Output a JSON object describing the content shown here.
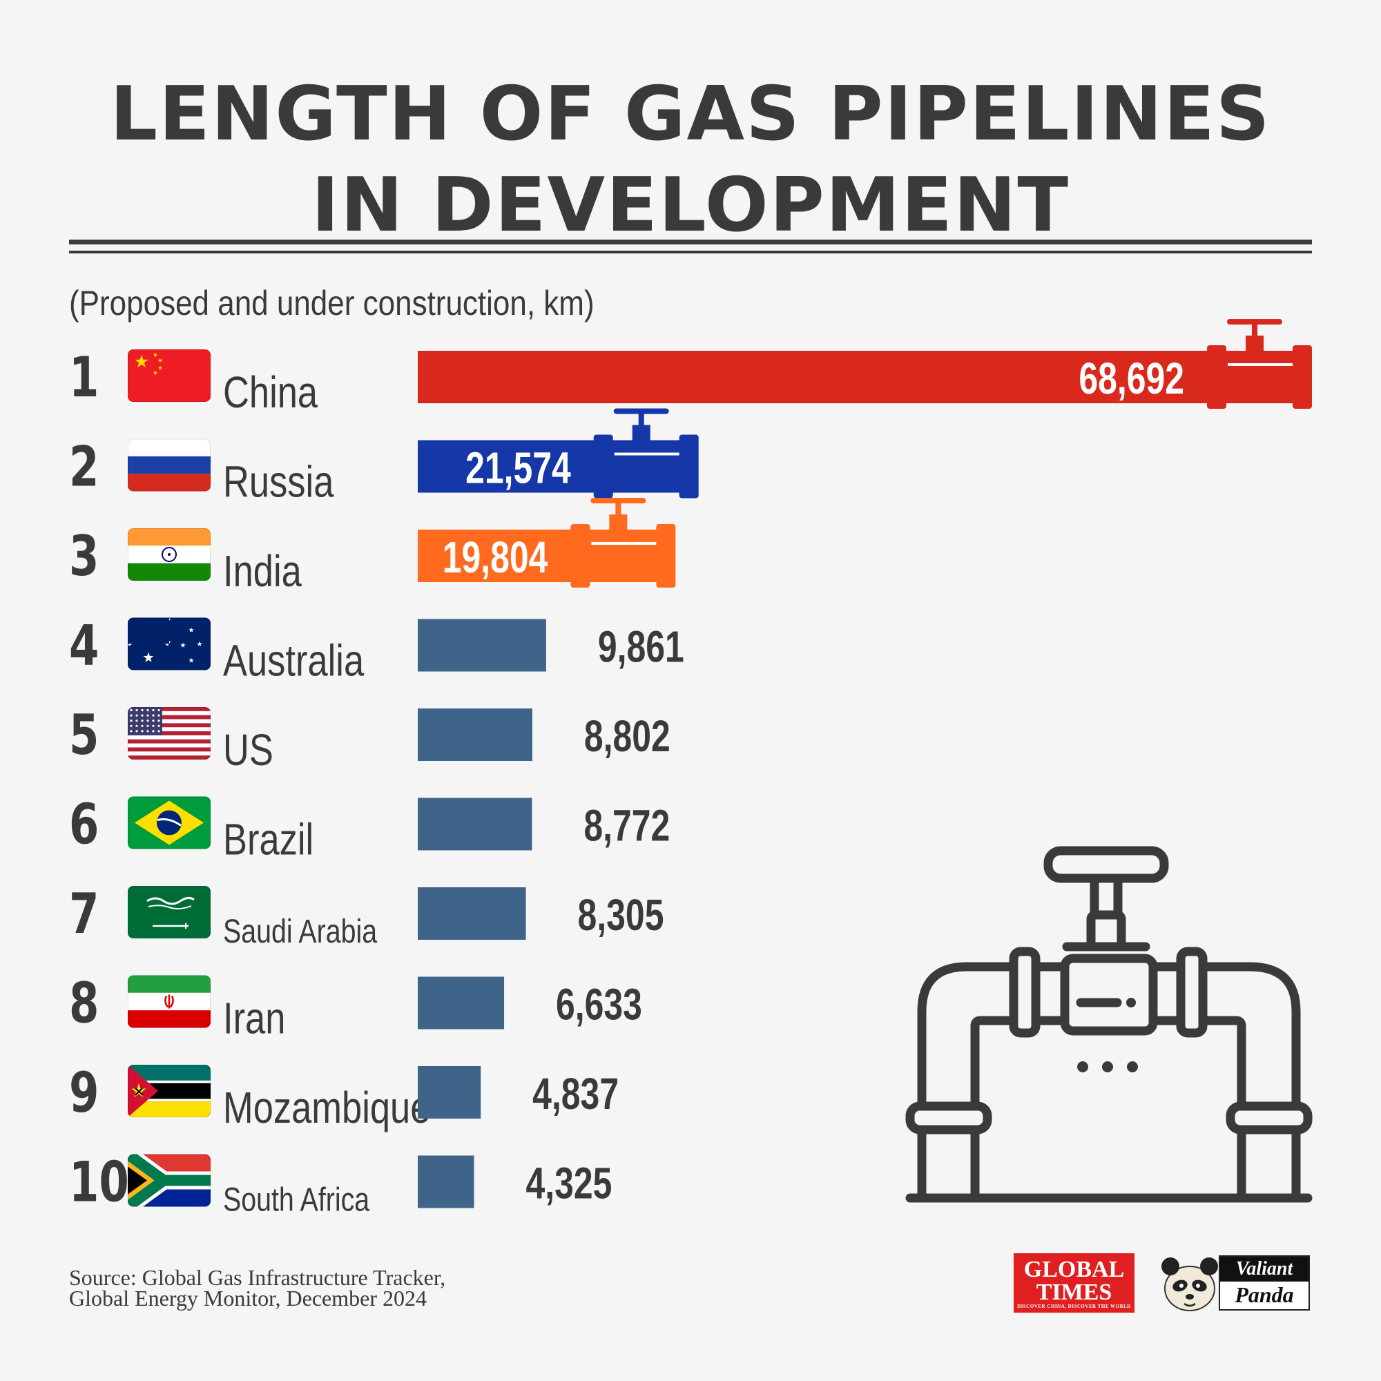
{
  "title": {
    "line1": "LENGTH OF GAS PIPELINES",
    "line2": "IN DEVELOPMENT"
  },
  "subtitle": "(Proposed and under construction, km)",
  "chart_data": {
    "type": "bar",
    "orientation": "horizontal",
    "title": "LENGTH OF GAS PIPELINES IN DEVELOPMENT",
    "subtitle": "(Proposed and under construction, km)",
    "categories": [
      "China",
      "Russia",
      "India",
      "Australia",
      "US",
      "Brazil",
      "Saudi Arabia",
      "Iran",
      "Mozambique",
      "South Africa"
    ],
    "ranks": [
      "1",
      "2",
      "3",
      "4",
      "5",
      "6",
      "7",
      "8",
      "9",
      "10"
    ],
    "values": [
      68692,
      21574,
      19804,
      9861,
      8802,
      8772,
      8305,
      6633,
      4837,
      4325
    ],
    "value_labels": [
      "68,692",
      "21,574",
      "19,804",
      "9,861",
      "8,802",
      "8,772",
      "8,305",
      "6,633",
      "4,837",
      "4,325"
    ],
    "flags": [
      "china-flag",
      "russia-flag",
      "india-flag",
      "australia-flag",
      "us-flag",
      "brazil-flag",
      "saudi-arabia-flag",
      "iran-flag",
      "mozambique-flag",
      "south-africa-flag"
    ],
    "bar_colors": [
      "#d9291c",
      "#1537a8",
      "#ff6a1f",
      "#3e6589",
      "#3e6589",
      "#3e6589",
      "#3e6589",
      "#3e6589",
      "#3e6589",
      "#3e6589"
    ],
    "xlim": [
      0,
      68692
    ],
    "grid": false,
    "legend": "none"
  },
  "decoration": {
    "icon": "pipeline-valve-icon",
    "line_color": "#3a3a3a"
  },
  "source": {
    "line1": "Source: Global Gas Infrastructure Tracker,",
    "line2": "Global Energy Monitor, December 2024"
  },
  "logos": {
    "global_times": {
      "line1": "GLOBAL",
      "line2": "TIMES",
      "tagline": "DISCOVER CHINA, DISCOVER THE WORLD"
    },
    "valiant_panda": {
      "line1": "Valiant",
      "line2": "Panda"
    }
  }
}
